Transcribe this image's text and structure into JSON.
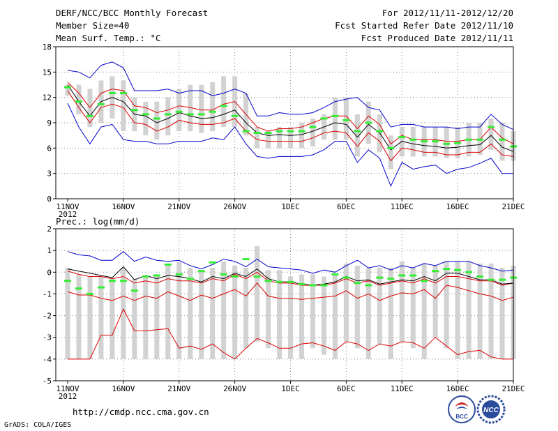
{
  "header": {
    "left": [
      "DERF/NCC/BCC Monthly Forecast",
      "Member Size=40",
      "Mean Surf. Temp.: °C"
    ],
    "right": [
      "For 2012/11/11-2012/12/20",
      "Fcst Started Refer Date 2012/11/10",
      "Fcst Produced Date 2012/11/11"
    ]
  },
  "footer": {
    "url": "http://cmdp.ncc.cma.gov.cn",
    "credit": "GrADS: COLA/IGES"
  },
  "logos": {
    "bcc_text": "BCC",
    "ncc_text": "NCC"
  },
  "colors": {
    "envelope": "#0000cc",
    "spread": "#dd0000",
    "mean": "#000000",
    "obs": "#33ee33",
    "box": "#d2d2d2",
    "grid": "#888888"
  },
  "chart_data": [
    {
      "type": "box-line",
      "title": "Mean Surf. Temp.: °C",
      "ylabel": "°C",
      "ylim": [
        0,
        18
      ],
      "yticks": [
        0,
        3,
        6,
        9,
        12,
        15,
        18
      ],
      "xticks": [
        {
          "day": 0,
          "label": "11NOV",
          "sub": "2012"
        },
        {
          "day": 5,
          "label": "16NOV"
        },
        {
          "day": 10,
          "label": "21NOV"
        },
        {
          "day": 15,
          "label": "26NOV"
        },
        {
          "day": 20,
          "label": "1DEC"
        },
        {
          "day": 25,
          "label": "6DEC"
        },
        {
          "day": 30,
          "label": "11DEC"
        },
        {
          "day": 35,
          "label": "16DEC"
        },
        {
          "day": 40,
          "label": "21DEC"
        }
      ],
      "grid": true,
      "series": [
        {
          "name": "max",
          "color": "blue",
          "values": [
            15.2,
            15.0,
            14.3,
            15.8,
            16.2,
            15.5,
            12.8,
            12.8,
            12.8,
            13.0,
            12.5,
            12.8,
            12.8,
            12.2,
            12.5,
            13.0,
            12.5,
            9.8,
            9.8,
            10.2,
            10.0,
            10.0,
            10.2,
            10.8,
            11.5,
            11.8,
            12.0,
            10.8,
            10.5,
            8.5,
            8.8,
            8.8,
            8.5,
            8.5,
            8.5,
            8.3,
            8.5,
            8.5,
            10.0,
            8.8,
            8.2
          ]
        },
        {
          "name": "spread_high",
          "color": "red",
          "values": [
            13.8,
            12.5,
            10.8,
            12.5,
            13.0,
            12.8,
            11.0,
            10.8,
            10.2,
            10.5,
            11.0,
            10.8,
            10.5,
            10.5,
            11.2,
            11.5,
            10.0,
            8.5,
            8.0,
            8.3,
            8.3,
            8.5,
            9.0,
            9.5,
            9.8,
            9.8,
            8.3,
            9.8,
            8.8,
            6.5,
            7.5,
            7.0,
            7.0,
            7.0,
            6.8,
            6.8,
            7.0,
            7.0,
            8.5,
            7.2,
            6.5
          ]
        },
        {
          "name": "mean",
          "color": "black",
          "values": [
            13.5,
            11.5,
            9.8,
            11.5,
            12.0,
            11.5,
            10.0,
            9.8,
            9.0,
            9.5,
            10.2,
            9.8,
            9.5,
            9.6,
            10.0,
            10.5,
            9.0,
            7.8,
            7.5,
            7.6,
            7.5,
            7.6,
            8.0,
            8.5,
            9.0,
            8.8,
            7.3,
            8.8,
            7.8,
            5.8,
            6.8,
            6.5,
            6.3,
            6.2,
            6.0,
            6.1,
            6.3,
            6.4,
            7.5,
            6.1,
            5.6
          ]
        },
        {
          "name": "spread_low",
          "color": "red",
          "values": [
            12.8,
            10.8,
            9.0,
            10.8,
            11.2,
            10.8,
            9.0,
            8.8,
            8.0,
            8.5,
            9.3,
            9.0,
            8.8,
            8.8,
            9.0,
            9.5,
            8.0,
            7.0,
            6.8,
            6.8,
            6.8,
            6.8,
            7.2,
            7.8,
            8.0,
            7.8,
            6.2,
            7.8,
            6.8,
            4.5,
            6.0,
            5.8,
            5.5,
            5.5,
            5.2,
            5.2,
            5.5,
            5.5,
            6.5,
            5.2,
            5.0
          ]
        },
        {
          "name": "min",
          "color": "blue",
          "values": [
            11.3,
            8.5,
            6.5,
            8.5,
            8.8,
            7.0,
            6.8,
            6.8,
            6.5,
            6.5,
            6.8,
            6.8,
            6.8,
            7.2,
            7.0,
            8.5,
            6.5,
            5.0,
            4.8,
            5.0,
            5.0,
            5.0,
            5.2,
            5.8,
            6.8,
            6.8,
            4.3,
            5.8,
            4.8,
            1.5,
            4.3,
            3.5,
            3.8,
            4.0,
            3.0,
            3.5,
            3.7,
            4.2,
            4.8,
            3.0,
            3.0
          ]
        }
      ],
      "boxes": {
        "low": [
          12.2,
          10.0,
          8.5,
          9.0,
          9.5,
          8.0,
          8.0,
          7.5,
          7.0,
          7.5,
          8.0,
          8.0,
          7.8,
          8.0,
          8.5,
          8.5,
          7.5,
          6.0,
          6.0,
          6.0,
          6.0,
          6.0,
          6.2,
          7.0,
          7.0,
          7.0,
          5.0,
          6.5,
          5.5,
          3.5,
          5.0,
          5.0,
          5.0,
          5.0,
          4.8,
          4.8,
          5.0,
          5.2,
          5.8,
          4.5,
          4.5
        ],
        "high": [
          13.5,
          13.5,
          13.0,
          14.0,
          14.5,
          14.0,
          12.0,
          11.5,
          11.5,
          12.0,
          13.0,
          13.5,
          13.5,
          13.8,
          14.5,
          14.5,
          12.5,
          8.5,
          8.0,
          8.5,
          8.5,
          9.0,
          9.5,
          10.0,
          12.0,
          12.0,
          10.0,
          11.5,
          10.0,
          7.5,
          8.5,
          8.5,
          8.5,
          8.5,
          8.5,
          8.5,
          9.0,
          9.0,
          9.5,
          9.0,
          8.0
        ]
      },
      "observed": [
        13.2,
        11.5,
        9.8,
        11.2,
        12.5,
        12.5,
        10.5,
        10.0,
        9.5,
        10.0,
        10.3,
        10.0,
        10.0,
        10.3,
        11.0,
        9.8,
        8.0,
        7.8,
        7.8,
        8.0,
        8.0,
        8.0,
        8.5,
        9.5,
        9.8,
        9.3,
        8.0,
        9.0,
        8.0,
        6.0,
        7.3,
        7.0,
        6.8,
        6.8,
        6.5,
        6.6,
        7.0,
        7.0,
        8.5,
        7.0,
        6.2
      ]
    },
    {
      "type": "box-line",
      "title": "Prec.: log(mm/d)",
      "ylabel": "log(mm/d)",
      "ylim": [
        -5,
        2
      ],
      "yticks": [
        -5,
        -4,
        -3,
        -2,
        -1,
        0,
        1,
        2
      ],
      "xticks": [
        {
          "day": 0,
          "label": "11NOV",
          "sub": "2012"
        },
        {
          "day": 5,
          "label": "16NOV"
        },
        {
          "day": 10,
          "label": "21NOV"
        },
        {
          "day": 15,
          "label": "26NOV"
        },
        {
          "day": 20,
          "label": "1DEC"
        },
        {
          "day": 25,
          "label": "6DEC"
        },
        {
          "day": 30,
          "label": "11DEC"
        },
        {
          "day": 35,
          "label": "16DEC"
        },
        {
          "day": 40,
          "label": "21DEC"
        }
      ],
      "grid": true,
      "series": [
        {
          "name": "max",
          "color": "blue",
          "values": [
            0.95,
            0.8,
            0.75,
            0.55,
            0.55,
            0.95,
            0.5,
            0.7,
            0.55,
            0.5,
            0.55,
            0.3,
            0.15,
            0.35,
            0.6,
            0.5,
            0.25,
            0.6,
            0.25,
            0.2,
            0.15,
            0.1,
            -0.05,
            0.1,
            0.0,
            0.3,
            0.55,
            0.2,
            0.3,
            0.1,
            0.3,
            0.2,
            0.4,
            0.3,
            0.5,
            0.5,
            0.5,
            0.3,
            0.2,
            0.05,
            0.1
          ]
        },
        {
          "name": "spread_high",
          "color": "red",
          "values": [
            0.05,
            -0.1,
            -0.2,
            -0.2,
            -0.3,
            -0.2,
            -0.5,
            -0.4,
            -0.5,
            -0.3,
            -0.4,
            -0.4,
            -0.5,
            -0.3,
            -0.4,
            -0.1,
            -0.3,
            0.0,
            -0.4,
            -0.5,
            -0.5,
            -0.6,
            -0.6,
            -0.6,
            -0.5,
            -0.3,
            -0.5,
            -0.4,
            -0.6,
            -0.5,
            -0.4,
            -0.5,
            -0.3,
            -0.5,
            -0.2,
            -0.2,
            -0.3,
            -0.4,
            -0.4,
            -0.6,
            -0.5
          ]
        },
        {
          "name": "mean",
          "color": "black",
          "values": [
            0.15,
            0.05,
            -0.05,
            -0.15,
            -0.25,
            0.25,
            -0.35,
            -0.15,
            -0.3,
            -0.15,
            -0.2,
            -0.3,
            -0.45,
            -0.2,
            -0.3,
            -0.05,
            -0.2,
            0.15,
            -0.3,
            -0.45,
            -0.45,
            -0.55,
            -0.6,
            -0.55,
            -0.45,
            -0.2,
            -0.4,
            -0.35,
            -0.55,
            -0.45,
            -0.35,
            -0.4,
            -0.2,
            -0.4,
            -0.05,
            -0.05,
            -0.2,
            -0.35,
            -0.35,
            -0.55,
            -0.5
          ]
        },
        {
          "name": "spread_low",
          "color": "red",
          "values": [
            -0.9,
            -1.05,
            -1.05,
            -1.2,
            -1.3,
            -1.1,
            -1.3,
            -1.1,
            -1.2,
            -0.9,
            -1.1,
            -1.3,
            -1.05,
            -1.2,
            -1.0,
            -0.8,
            -1.1,
            -0.5,
            -1.1,
            -1.2,
            -1.2,
            -1.25,
            -1.2,
            -1.15,
            -1.1,
            -0.85,
            -1.2,
            -1.0,
            -1.3,
            -1.1,
            -0.95,
            -1.0,
            -0.8,
            -1.2,
            -0.6,
            -0.7,
            -0.85,
            -1.0,
            -1.1,
            -1.3,
            -1.15
          ]
        },
        {
          "name": "min",
          "color": "red",
          "values": [
            -4.0,
            -4.0,
            -4.0,
            -2.9,
            -2.9,
            -1.7,
            -2.7,
            -2.7,
            -2.65,
            -2.6,
            -3.5,
            -3.4,
            -3.55,
            -3.3,
            -3.7,
            -4.0,
            -3.5,
            -3.05,
            -3.25,
            -3.5,
            -3.5,
            -3.3,
            -3.25,
            -3.4,
            -3.6,
            -3.2,
            -3.3,
            -3.6,
            -3.3,
            -3.4,
            -3.2,
            -3.25,
            -3.5,
            -3.0,
            -3.4,
            -3.8,
            -3.65,
            -3.6,
            -3.9,
            -4.0,
            -4.0
          ]
        }
      ],
      "boxes": {
        "low": [
          -4.0,
          -4.0,
          -4.0,
          -4.0,
          -4.0,
          -4.0,
          -4.0,
          -4.0,
          -4.0,
          -4.0,
          -4.0,
          -4.0,
          -4.0,
          -4.0,
          -4.0,
          -4.0,
          -3.5,
          -3.2,
          -3.5,
          -4.0,
          -4.0,
          -4.0,
          -3.5,
          -3.8,
          -4.0,
          -3.2,
          -3.5,
          -4.0,
          -3.3,
          -4.0,
          -3.2,
          -3.5,
          -4.0,
          -3.0,
          -3.5,
          -4.0,
          -4.0,
          -4.0,
          -4.0,
          -4.0,
          -4.0
        ],
        "high": [
          0.2,
          -0.1,
          -0.2,
          -0.2,
          -0.3,
          0.2,
          -0.3,
          -0.2,
          -0.1,
          0.4,
          0.5,
          0.2,
          0.1,
          0.2,
          0.5,
          0.3,
          0.2,
          1.2,
          0.1,
          0.1,
          -0.2,
          -0.1,
          -0.1,
          -0.2,
          -0.1,
          0.4,
          0.3,
          0.2,
          0.2,
          0.2,
          0.5,
          0.2,
          0.4,
          0.3,
          0.5,
          0.5,
          0.5,
          0.4,
          0.4,
          0.2,
          0.3
        ]
      },
      "observed": [
        -0.4,
        -0.75,
        -1.0,
        -0.7,
        -0.4,
        -0.4,
        -0.85,
        -0.2,
        -0.15,
        0.35,
        -0.1,
        -0.3,
        0.05,
        0.45,
        -0.1,
        -0.2,
        0.6,
        -0.2,
        -0.4,
        -0.45,
        -0.45,
        -0.55,
        -0.6,
        -0.6,
        -0.1,
        -0.25,
        -0.5,
        -0.6,
        -0.25,
        -0.3,
        -0.15,
        -0.15,
        -0.4,
        0.05,
        0.15,
        0.1,
        0.0,
        -0.2,
        -0.35,
        -0.35,
        -0.25
      ]
    }
  ]
}
